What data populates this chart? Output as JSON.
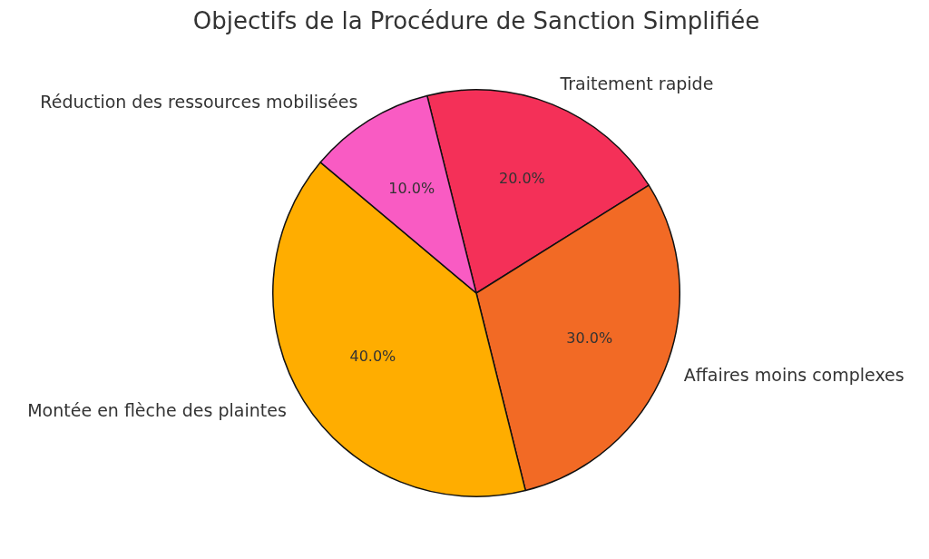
{
  "chart_data": {
    "type": "pie",
    "title": "Objectifs de la Procédure de Sanction Simplifiée",
    "categories": [
      "Traitement rapide",
      "Affaires moins complexes",
      "Montée en flèche des plaintes",
      "Réduction des ressources mobilisées"
    ],
    "values": [
      20,
      30,
      40,
      10
    ],
    "colors": [
      "#f43058",
      "#f26a25",
      "#ffad00",
      "#f95bc3"
    ],
    "value_labels": [
      "20.0%",
      "30.0%",
      "40.0%",
      "10.0%"
    ],
    "legend": false
  }
}
